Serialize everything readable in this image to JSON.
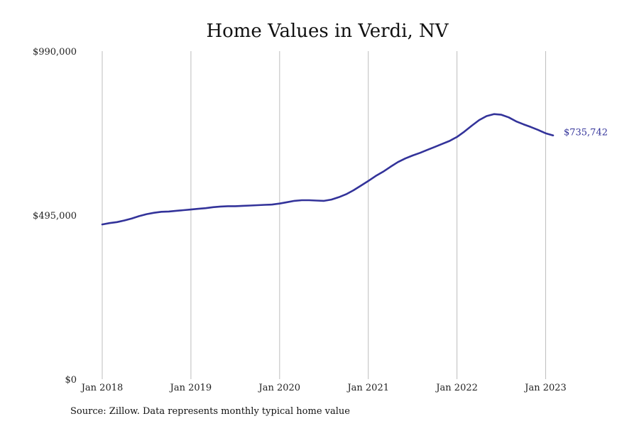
{
  "chart_data": {
    "type": "line",
    "title": "Home Values in Verdi, NV",
    "xlabel": "",
    "ylabel": "",
    "ylim": [
      0,
      990000
    ],
    "y_ticks": [
      {
        "value": 0,
        "label": "$0"
      },
      {
        "value": 495000,
        "label": "$495,000"
      },
      {
        "value": 990000,
        "label": "$990,000"
      }
    ],
    "x_range": [
      2018.0,
      2023.5
    ],
    "x_ticks": [
      {
        "value": 2018,
        "label": "Jan 2018"
      },
      {
        "value": 2019,
        "label": "Jan 2019"
      },
      {
        "value": 2020,
        "label": "Jan 2020"
      },
      {
        "value": 2021,
        "label": "Jan 2021"
      },
      {
        "value": 2022,
        "label": "Jan 2022"
      },
      {
        "value": 2023,
        "label": "Jan 2023"
      }
    ],
    "grid": "vertical",
    "line_color": "#33339a",
    "series": [
      {
        "end_label": "$735,742",
        "x": [
          "2018-01",
          "2018-02",
          "2018-03",
          "2018-04",
          "2018-05",
          "2018-06",
          "2018-07",
          "2018-08",
          "2018-09",
          "2018-10",
          "2018-11",
          "2018-12",
          "2019-01",
          "2019-02",
          "2019-03",
          "2019-04",
          "2019-05",
          "2019-06",
          "2019-07",
          "2019-08",
          "2019-09",
          "2019-10",
          "2019-11",
          "2019-12",
          "2020-01",
          "2020-02",
          "2020-03",
          "2020-04",
          "2020-05",
          "2020-06",
          "2020-07",
          "2020-08",
          "2020-09",
          "2020-10",
          "2020-11",
          "2020-12",
          "2021-01",
          "2021-02",
          "2021-03",
          "2021-04",
          "2021-05",
          "2021-06",
          "2021-07",
          "2021-08",
          "2021-09",
          "2021-10",
          "2021-11",
          "2021-12",
          "2022-01",
          "2022-02",
          "2022-03",
          "2022-04",
          "2022-05",
          "2022-06",
          "2022-07",
          "2022-08",
          "2022-09",
          "2022-10",
          "2022-11",
          "2022-12",
          "2023-01",
          "2023-02"
        ],
        "values": [
          467000,
          471000,
          474000,
          479000,
          485000,
          492000,
          498000,
          502000,
          505000,
          506000,
          508000,
          510000,
          512000,
          514000,
          516000,
          519000,
          521000,
          522000,
          522000,
          523000,
          524000,
          525000,
          526000,
          527000,
          530000,
          534000,
          538000,
          540000,
          540000,
          539000,
          538000,
          542000,
          549000,
          558000,
          570000,
          584000,
          598000,
          613000,
          626000,
          641000,
          655000,
          666000,
          675000,
          683000,
          692000,
          701000,
          710000,
          719000,
          731000,
          747000,
          765000,
          782000,
          794000,
          800000,
          798000,
          790000,
          778000,
          769000,
          761000,
          752000,
          742000,
          735742
        ]
      }
    ]
  },
  "source_text": "Source: Zillow. Data represents monthly typical home value"
}
